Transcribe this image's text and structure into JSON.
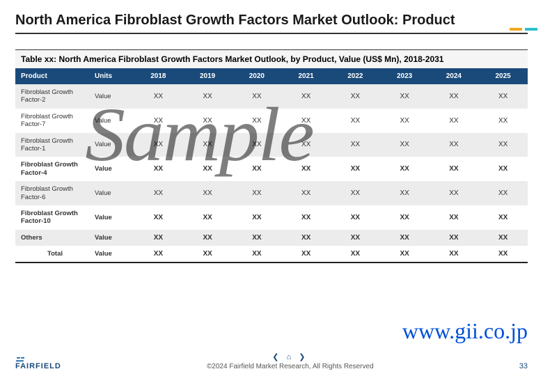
{
  "title": "North America Fibroblast Growth Factors Market Outlook: Product",
  "accent_colors": [
    "#f5a623",
    "#2dbecd"
  ],
  "table": {
    "caption": "Table xx: North America Fibroblast Growth Factors Market Outlook, by Product, Value (US$ Mn), 2018-2031",
    "header_bg": "#1a4a7a",
    "columns": [
      "Product",
      "Units",
      "2018",
      "2019",
      "2020",
      "2021",
      "2022",
      "2023",
      "2024",
      "2025"
    ],
    "rows": [
      {
        "product": "Fibroblast Growth Factor-2",
        "units": "Value",
        "vals": [
          "XX",
          "XX",
          "XX",
          "XX",
          "XX",
          "XX",
          "XX",
          "XX"
        ],
        "alt": true,
        "bold": false
      },
      {
        "product": "Fibroblast Growth Factor-7",
        "units": "Value",
        "vals": [
          "XX",
          "XX",
          "XX",
          "XX",
          "XX",
          "XX",
          "XX",
          "XX"
        ],
        "alt": false,
        "bold": false
      },
      {
        "product": "Fibroblast Growth Factor-1",
        "units": "Value",
        "vals": [
          "XX",
          "XX",
          "XX",
          "XX",
          "XX",
          "XX",
          "XX",
          "XX"
        ],
        "alt": true,
        "bold": false
      },
      {
        "product": "Fibroblast Growth Factor-4",
        "units": "Value",
        "vals": [
          "XX",
          "XX",
          "XX",
          "XX",
          "XX",
          "XX",
          "XX",
          "XX"
        ],
        "alt": false,
        "bold": true
      },
      {
        "product": "Fibroblast Growth Factor-6",
        "units": "Value",
        "vals": [
          "XX",
          "XX",
          "XX",
          "XX",
          "XX",
          "XX",
          "XX",
          "XX"
        ],
        "alt": true,
        "bold": false
      },
      {
        "product": "Fibroblast Growth Factor-10",
        "units": "Value",
        "vals": [
          "XX",
          "XX",
          "XX",
          "XX",
          "XX",
          "XX",
          "XX",
          "XX"
        ],
        "alt": false,
        "bold": true
      },
      {
        "product": "Others",
        "units": "Value",
        "vals": [
          "XX",
          "XX",
          "XX",
          "XX",
          "XX",
          "XX",
          "XX",
          "XX"
        ],
        "alt": true,
        "bold": true
      }
    ],
    "total": {
      "label": "Total",
      "units": "Value",
      "vals": [
        "XX",
        "XX",
        "XX",
        "XX",
        "XX",
        "XX",
        "XX",
        "XX"
      ]
    }
  },
  "watermark": "Sample",
  "watermark_url": "www.gii.co.jp",
  "footer": {
    "logo_text": "FAIRFIELD",
    "copyright": "©2024 Fairfield Market Research, All Rights Reserved",
    "page": "33",
    "nav_prev": "❮",
    "nav_home": "⌂",
    "nav_next": "❯"
  }
}
